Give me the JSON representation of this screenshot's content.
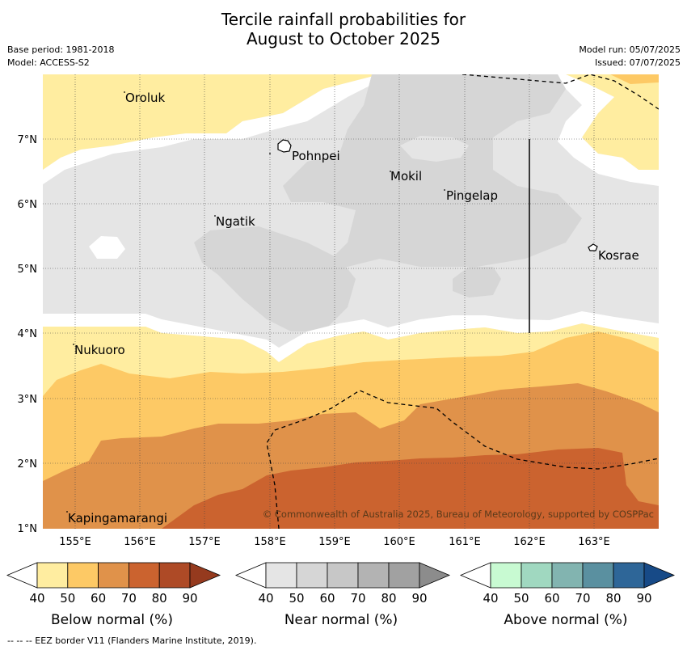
{
  "title_line1": "Tercile rainfall probabilities for",
  "title_line2": "August to October 2025",
  "meta": {
    "base_period": "Base period: 1981-2018",
    "model": "Model: ACCESS-S2",
    "model_run": "Model run: 05/07/2025",
    "issued": "Issued: 07/07/2025"
  },
  "map": {
    "lat_labels": [
      "7°N",
      "6°N",
      "5°N",
      "4°N",
      "3°N",
      "2°N",
      "1°N"
    ],
    "lon_labels": [
      "155°E",
      "156°E",
      "157°E",
      "158°E",
      "159°E",
      "160°E",
      "161°E",
      "162°E",
      "163°E"
    ],
    "places": [
      "Oroluk",
      "Pohnpei",
      "Mokil",
      "Pingelap",
      "Ngatik",
      "Kosrae",
      "Nukuoro",
      "Kapingamarangi"
    ],
    "copyright": "© Commonwealth of Australia 2025, Bureau of Meteorology, supported by COSPPac"
  },
  "colorbars": [
    {
      "label": "Below normal (%)",
      "ticks": [
        "40",
        "50",
        "60",
        "70",
        "80",
        "90"
      ],
      "colors": [
        "#ffeda0",
        "#fdc965",
        "#e0924a",
        "#cb632f",
        "#ae4a26",
        "#953a1e"
      ]
    },
    {
      "label": "Near normal (%)",
      "ticks": [
        "40",
        "50",
        "60",
        "70",
        "80",
        "90"
      ],
      "colors": [
        "#e5e5e5",
        "#d6d6d6",
        "#c7c7c7",
        "#b3b3b3",
        "#a1a1a1",
        "#8c8c8c"
      ]
    },
    {
      "label": "Above normal (%)",
      "ticks": [
        "40",
        "50",
        "60",
        "70",
        "80",
        "90"
      ],
      "colors": [
        "#c8fad2",
        "#a0d8c0",
        "#82b4b0",
        "#5a90a0",
        "#2e6698",
        "#174a87"
      ]
    }
  ],
  "eez_note": "--  --  -- EEZ border V11 (Flanders Marine Institute, 2019)."
}
